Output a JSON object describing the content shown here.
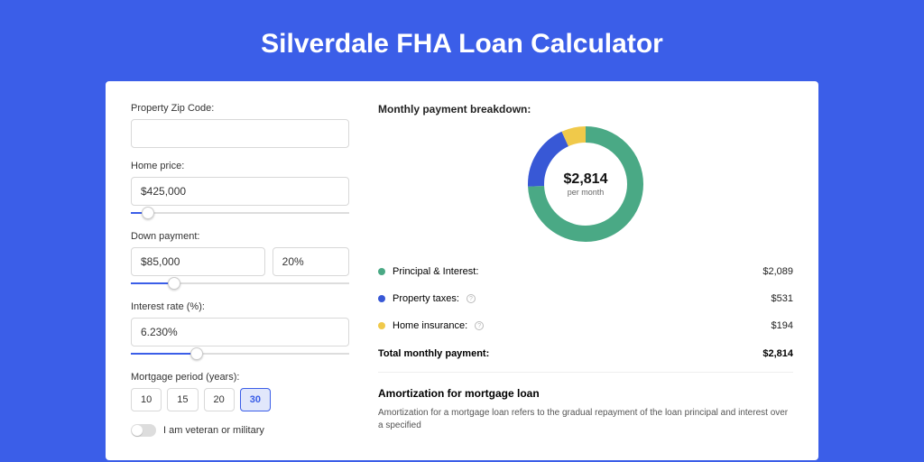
{
  "title": "Silverdale FHA Loan Calculator",
  "colors": {
    "page_bg": "#3b5ee8",
    "card_bg": "#ffffff",
    "accent": "#3b5ee8",
    "principal": "#4aa985",
    "taxes": "#3858d6",
    "insurance": "#f0c94a",
    "grid": "#dddddd"
  },
  "form": {
    "zip_label": "Property Zip Code:",
    "zip_value": "",
    "home_price_label": "Home price:",
    "home_price_value": "$425,000",
    "home_price_slider_pct": 8,
    "down_payment_label": "Down payment:",
    "down_payment_value": "$85,000",
    "down_payment_pct_value": "20%",
    "down_payment_slider_pct": 20,
    "interest_label": "Interest rate (%):",
    "interest_value": "6.230%",
    "interest_slider_pct": 30,
    "period_label": "Mortgage period (years):",
    "periods": [
      "10",
      "15",
      "20",
      "30"
    ],
    "period_active_index": 3,
    "veteran_label": "I am veteran or military",
    "veteran_on": false
  },
  "breakdown": {
    "title": "Monthly payment breakdown:",
    "center_amount": "$2,814",
    "center_sub": "per month",
    "donut": {
      "size": 128,
      "stroke_width": 18,
      "slices": [
        {
          "name": "principal",
          "value": 2089,
          "color": "#4aa985"
        },
        {
          "name": "taxes",
          "value": 531,
          "color": "#3858d6"
        },
        {
          "name": "insurance",
          "value": 194,
          "color": "#f0c94a"
        }
      ]
    },
    "rows": [
      {
        "label": "Principal & Interest:",
        "value": "$2,089",
        "color": "#4aa985",
        "info": false
      },
      {
        "label": "Property taxes:",
        "value": "$531",
        "color": "#3858d6",
        "info": true
      },
      {
        "label": "Home insurance:",
        "value": "$194",
        "color": "#f0c94a",
        "info": true
      }
    ],
    "total_label": "Total monthly payment:",
    "total_value": "$2,814"
  },
  "amortization": {
    "title": "Amortization for mortgage loan",
    "text": "Amortization for a mortgage loan refers to the gradual repayment of the loan principal and interest over a specified"
  }
}
